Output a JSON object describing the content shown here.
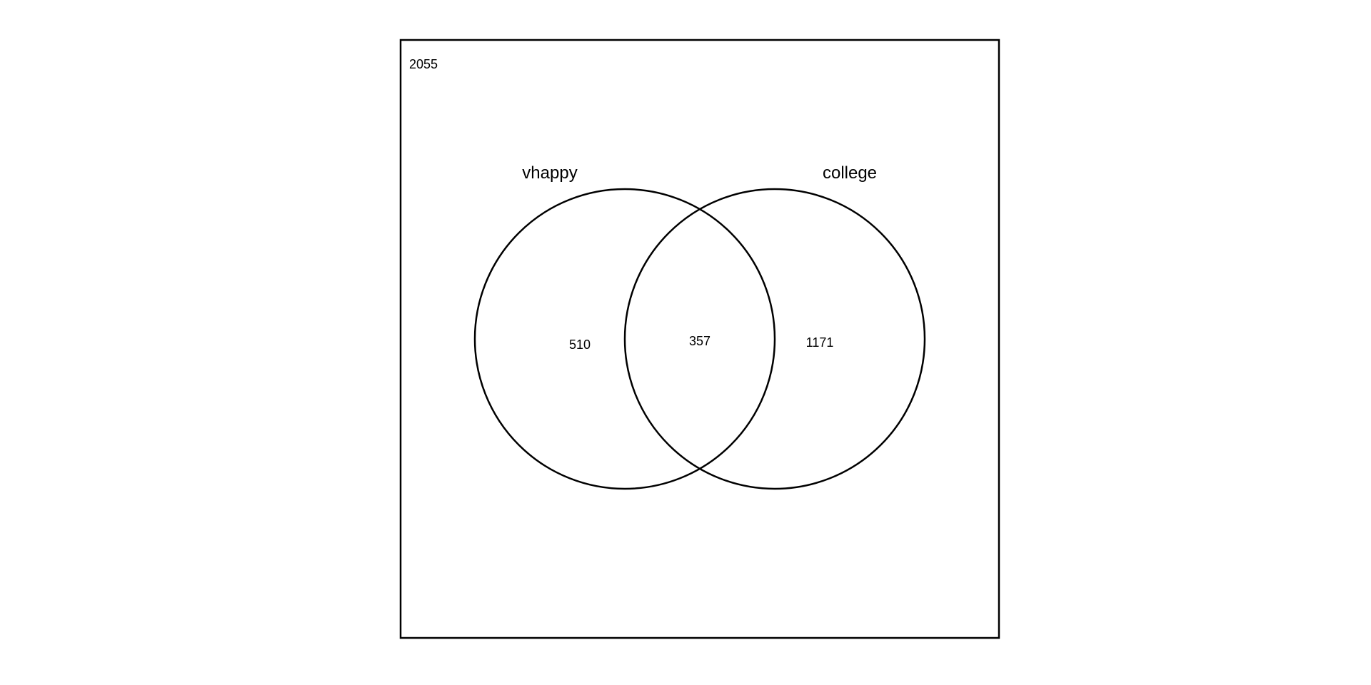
{
  "diagram": {
    "type": "venn",
    "universe_count": "2055",
    "sets": [
      {
        "name": "vhappy",
        "only_count": "510"
      },
      {
        "name": "college",
        "only_count": "1171"
      }
    ],
    "intersection_count": "357",
    "stroke_color": "#000000",
    "background_color": "#ffffff"
  }
}
